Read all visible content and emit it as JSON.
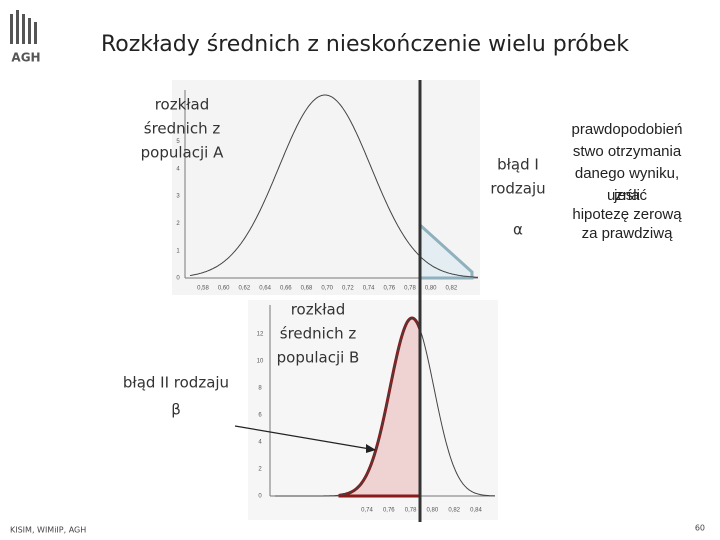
{
  "header": {
    "title": "Rozkłady średnich z nieskończenie wielu próbek",
    "logo": "AGH"
  },
  "top_plot": {
    "xticks": [
      "0,58",
      "0,60",
      "0,62",
      "0,64",
      "0,66",
      "0,68",
      "0,70",
      "0,72",
      "0,74",
      "0,76",
      "0,78",
      "0,80",
      "0,82"
    ],
    "yticks": [
      "0",
      "1",
      "2",
      "3",
      "4",
      "5"
    ]
  },
  "bottom_plot": {
    "xticks": [
      "0,74",
      "0,76",
      "0,78",
      "0,80",
      "0,82",
      "0,84"
    ],
    "yticks": [
      "0",
      "2",
      "4",
      "6",
      "8",
      "10",
      "12"
    ]
  },
  "annotations": {
    "population_a": [
      "rozkład",
      "średnich z",
      "populacji A"
    ],
    "type_one_error": [
      "błąd I",
      "rodzaju"
    ],
    "alpha": "α",
    "probability": [
      "prawdopodobień",
      "stwo otrzymania",
      "danego wyniku,",
      "jeśli"
    ],
    "probability_highlight": [
      "uznać",
      "hipotezę zerową",
      "za prawdziwą"
    ],
    "population_b": [
      "rozkład",
      "średnich z",
      "populacji B"
    ],
    "type_two_error": "błąd II rodzaju",
    "beta": "β"
  },
  "footer": {
    "source": "KISIM, WIMiIP, AGH",
    "page_number": "60"
  }
}
